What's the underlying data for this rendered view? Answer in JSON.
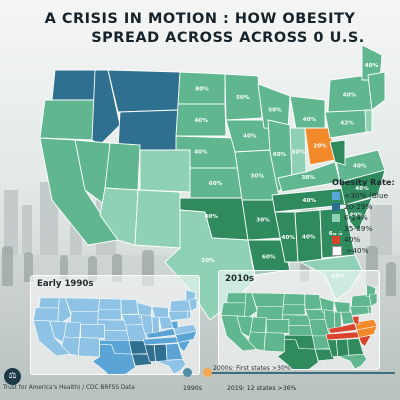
{
  "title": {
    "line1": "A CRISIS IN MOTION : HOW OBESITY",
    "line2": "SPREAD ACROSS ACROSS 0 U.S."
  },
  "colors": {
    "blue_light": "#8ec3e6",
    "blue_mid": "#5ba4d6",
    "teal_dark": "#2f6f8f",
    "green_light": "#8fd1b5",
    "green_mid": "#5fb68f",
    "green_dark": "#2f8a5e",
    "red": "#d9442e",
    "orange": "#f28a2c"
  },
  "map_main": {
    "state_labels": [
      {
        "text": "80%",
        "state": "ND"
      },
      {
        "text": "50%",
        "state": "MN"
      },
      {
        "text": "40%",
        "state": "SD"
      },
      {
        "text": "40%",
        "state": "NE"
      },
      {
        "text": "60%",
        "state": "KS"
      },
      {
        "text": "40%",
        "state": "IA"
      },
      {
        "text": "50%",
        "state": "WI"
      },
      {
        "text": "40%",
        "state": "MI"
      },
      {
        "text": "60%",
        "state": "IL"
      },
      {
        "text": "30%",
        "state": "IN"
      },
      {
        "text": "20%",
        "state": "OH"
      },
      {
        "text": "30%",
        "state": "MO"
      },
      {
        "text": "40%",
        "state": "OK"
      },
      {
        "text": "30%",
        "state": "AR"
      },
      {
        "text": "40%",
        "state": "TN"
      },
      {
        "text": "38%",
        "state": "KY"
      },
      {
        "text": "40%",
        "state": "AL"
      },
      {
        "text": "40%",
        "state": "MS"
      },
      {
        "text": "60%",
        "state": "GA"
      },
      {
        "text": "40%",
        "state": "SC"
      },
      {
        "text": "40%",
        "state": "NC"
      },
      {
        "text": "40%",
        "state": "VA"
      },
      {
        "text": "42%",
        "state": "PA"
      },
      {
        "text": "40%",
        "state": "NY"
      },
      {
        "text": "40%",
        "state": "ME"
      },
      {
        "text": "20%",
        "state": "TX"
      },
      {
        "text": "40%",
        "state": "FL"
      },
      {
        "text": "60%",
        "state": "LA"
      }
    ]
  },
  "legend": {
    "title": "Obesity Rate:",
    "items": [
      {
        "label": "<30% (Blue",
        "color": "#5ba4d6"
      },
      {
        "label": "20-29%",
        "color": "#2f6f8f"
      },
      {
        "label": "6-24%",
        "color": "#8fd1b5"
      },
      {
        "label": "35-39%",
        "color": "#2f8a5e"
      },
      {
        "label": "40%",
        "color": "#d9442e"
      },
      {
        "label": ">40%",
        "color": "#ffffff"
      }
    ]
  },
  "insets": [
    {
      "title": "Early 1990s"
    },
    {
      "title": "2010s"
    }
  ],
  "timeline": {
    "label_1990": "1990s",
    "label_2000": "2000s: First states >30%",
    "label_2019": "2019: 12 states >36%"
  },
  "source": "Trust for America's Health) / CDC BRFSS Data",
  "logo_icon": "scale-icon"
}
